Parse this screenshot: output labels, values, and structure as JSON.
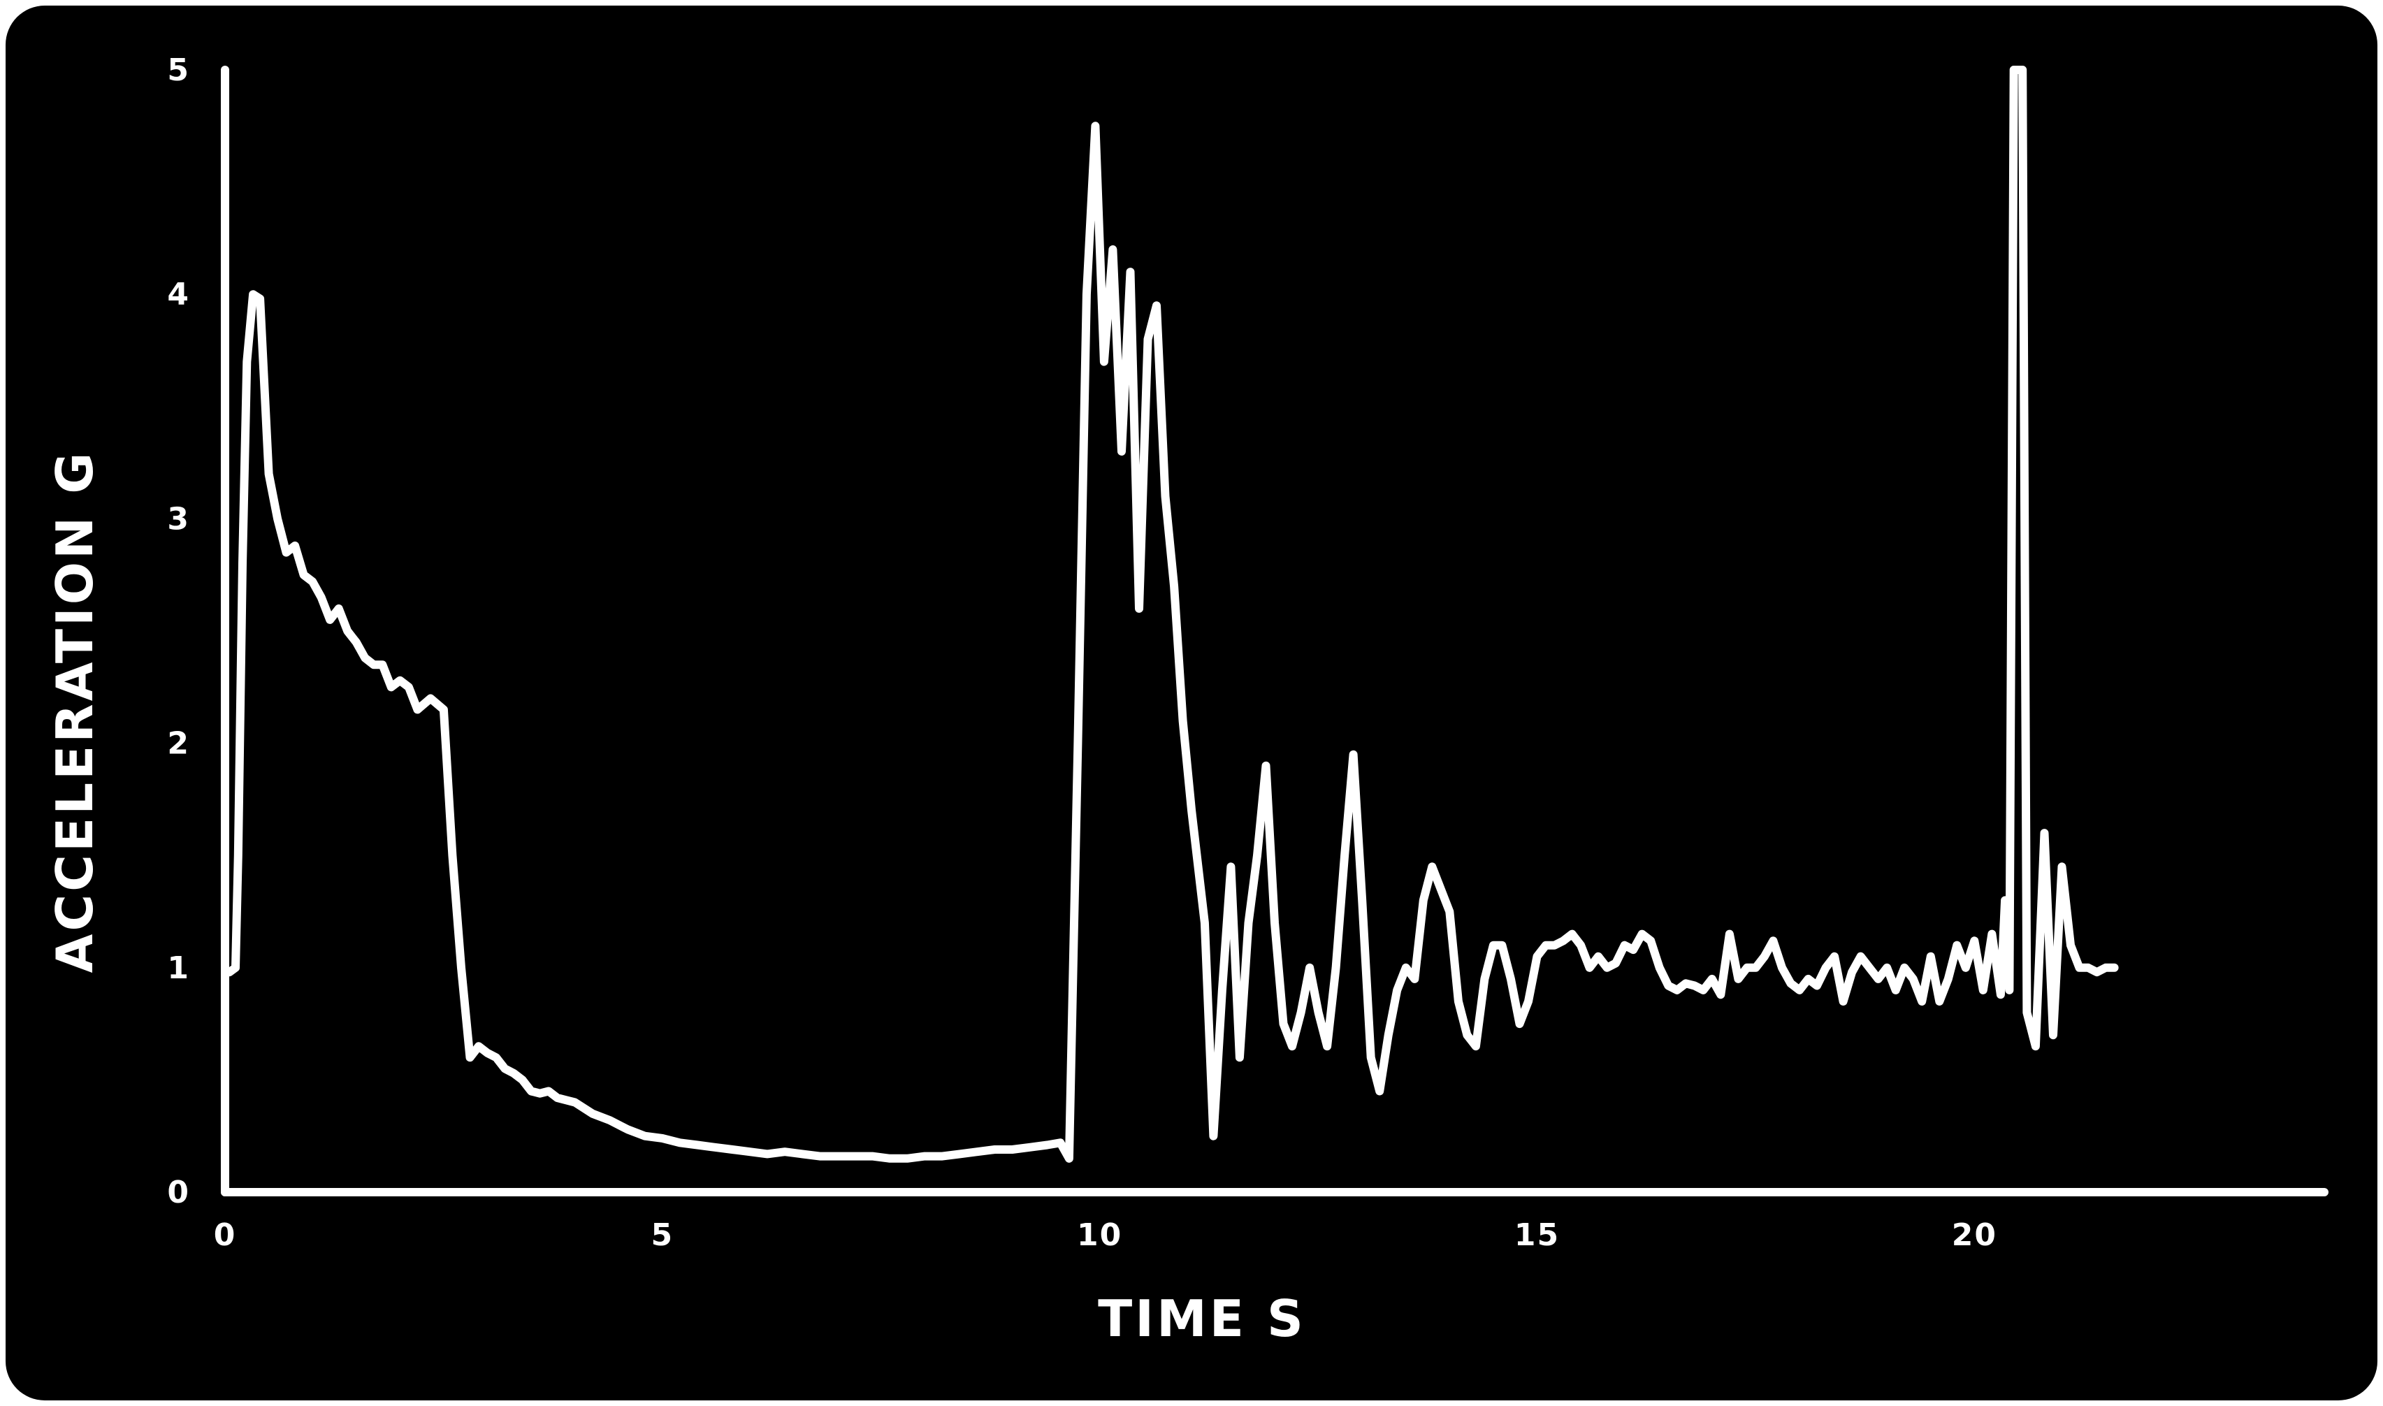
{
  "chart_data": {
    "type": "line",
    "title": "",
    "xlabel": "TIME S",
    "ylabel": "ACCELERATION G",
    "xlim": [
      0,
      24
    ],
    "ylim": [
      0,
      5
    ],
    "grid": false,
    "legend": "none",
    "x_ticks": [
      {
        "value": 0,
        "label": "0"
      },
      {
        "value": 5,
        "label": "5"
      },
      {
        "value": 10,
        "label": "10"
      },
      {
        "value": 15,
        "label": "15"
      },
      {
        "value": 20,
        "label": "20"
      }
    ],
    "y_ticks": [
      {
        "value": 0,
        "label": "0"
      },
      {
        "value": 1,
        "label": "1"
      },
      {
        "value": 2,
        "label": "2"
      },
      {
        "value": 3,
        "label": "3"
      },
      {
        "value": 4,
        "label": "4"
      },
      {
        "value": 5,
        "label": "5"
      }
    ],
    "colors": {
      "background": "#000000",
      "line": "#ffffff",
      "axis": "#ffffff",
      "text": "#ffffff"
    },
    "series": [
      {
        "name": "",
        "points": [
          [
            0.05,
            0.98
          ],
          [
            0.12,
            1.0
          ],
          [
            0.15,
            1.5
          ],
          [
            0.2,
            2.8
          ],
          [
            0.25,
            3.7
          ],
          [
            0.32,
            4.0
          ],
          [
            0.4,
            3.98
          ],
          [
            0.5,
            3.2
          ],
          [
            0.6,
            3.0
          ],
          [
            0.7,
            2.85
          ],
          [
            0.8,
            2.88
          ],
          [
            0.9,
            2.75
          ],
          [
            1.0,
            2.72
          ],
          [
            1.1,
            2.65
          ],
          [
            1.2,
            2.55
          ],
          [
            1.3,
            2.6
          ],
          [
            1.4,
            2.5
          ],
          [
            1.5,
            2.45
          ],
          [
            1.6,
            2.38
          ],
          [
            1.7,
            2.35
          ],
          [
            1.8,
            2.35
          ],
          [
            1.9,
            2.25
          ],
          [
            2.0,
            2.28
          ],
          [
            2.1,
            2.25
          ],
          [
            2.2,
            2.15
          ],
          [
            2.35,
            2.2
          ],
          [
            2.5,
            2.15
          ],
          [
            2.6,
            1.5
          ],
          [
            2.7,
            1.0
          ],
          [
            2.8,
            0.6
          ],
          [
            2.9,
            0.65
          ],
          [
            3.0,
            0.62
          ],
          [
            3.1,
            0.6
          ],
          [
            3.2,
            0.55
          ],
          [
            3.3,
            0.53
          ],
          [
            3.4,
            0.5
          ],
          [
            3.5,
            0.45
          ],
          [
            3.6,
            0.44
          ],
          [
            3.7,
            0.45
          ],
          [
            3.8,
            0.42
          ],
          [
            3.9,
            0.41
          ],
          [
            4.0,
            0.4
          ],
          [
            4.2,
            0.35
          ],
          [
            4.4,
            0.32
          ],
          [
            4.6,
            0.28
          ],
          [
            4.8,
            0.25
          ],
          [
            5.0,
            0.24
          ],
          [
            5.2,
            0.22
          ],
          [
            5.4,
            0.21
          ],
          [
            5.6,
            0.2
          ],
          [
            5.8,
            0.19
          ],
          [
            6.0,
            0.18
          ],
          [
            6.2,
            0.17
          ],
          [
            6.4,
            0.18
          ],
          [
            6.6,
            0.17
          ],
          [
            6.8,
            0.16
          ],
          [
            7.0,
            0.16
          ],
          [
            7.2,
            0.16
          ],
          [
            7.4,
            0.16
          ],
          [
            7.6,
            0.15
          ],
          [
            7.8,
            0.15
          ],
          [
            8.0,
            0.16
          ],
          [
            8.2,
            0.16
          ],
          [
            8.4,
            0.17
          ],
          [
            8.6,
            0.18
          ],
          [
            8.8,
            0.19
          ],
          [
            9.0,
            0.19
          ],
          [
            9.2,
            0.2
          ],
          [
            9.4,
            0.21
          ],
          [
            9.55,
            0.22
          ],
          [
            9.65,
            0.15
          ],
          [
            9.75,
            2.0
          ],
          [
            9.85,
            4.0
          ],
          [
            9.95,
            4.75
          ],
          [
            10.05,
            3.7
          ],
          [
            10.15,
            4.2
          ],
          [
            10.25,
            3.3
          ],
          [
            10.35,
            4.1
          ],
          [
            10.45,
            2.6
          ],
          [
            10.55,
            3.8
          ],
          [
            10.65,
            3.95
          ],
          [
            10.75,
            3.1
          ],
          [
            10.85,
            2.7
          ],
          [
            10.95,
            2.1
          ],
          [
            11.05,
            1.7
          ],
          [
            11.2,
            1.2
          ],
          [
            11.3,
            0.25
          ],
          [
            11.4,
            0.9
          ],
          [
            11.5,
            1.45
          ],
          [
            11.6,
            0.6
          ],
          [
            11.7,
            1.2
          ],
          [
            11.8,
            1.5
          ],
          [
            11.9,
            1.9
          ],
          [
            12.0,
            1.2
          ],
          [
            12.1,
            0.75
          ],
          [
            12.2,
            0.65
          ],
          [
            12.3,
            0.8
          ],
          [
            12.4,
            1.0
          ],
          [
            12.5,
            0.8
          ],
          [
            12.6,
            0.65
          ],
          [
            12.7,
            1.0
          ],
          [
            12.8,
            1.5
          ],
          [
            12.9,
            1.95
          ],
          [
            13.0,
            1.3
          ],
          [
            13.1,
            0.6
          ],
          [
            13.2,
            0.45
          ],
          [
            13.3,
            0.7
          ],
          [
            13.4,
            0.9
          ],
          [
            13.5,
            1.0
          ],
          [
            13.6,
            0.95
          ],
          [
            13.7,
            1.3
          ],
          [
            13.8,
            1.45
          ],
          [
            13.9,
            1.35
          ],
          [
            14.0,
            1.25
          ],
          [
            14.1,
            0.85
          ],
          [
            14.2,
            0.7
          ],
          [
            14.3,
            0.65
          ],
          [
            14.4,
            0.95
          ],
          [
            14.5,
            1.1
          ],
          [
            14.6,
            1.1
          ],
          [
            14.7,
            0.95
          ],
          [
            14.8,
            0.75
          ],
          [
            14.9,
            0.85
          ],
          [
            15.0,
            1.05
          ],
          [
            15.1,
            1.1
          ],
          [
            15.2,
            1.1
          ],
          [
            15.3,
            1.12
          ],
          [
            15.4,
            1.15
          ],
          [
            15.5,
            1.1
          ],
          [
            15.6,
            1.0
          ],
          [
            15.7,
            1.05
          ],
          [
            15.8,
            1.0
          ],
          [
            15.9,
            1.02
          ],
          [
            16.0,
            1.1
          ],
          [
            16.1,
            1.08
          ],
          [
            16.2,
            1.15
          ],
          [
            16.3,
            1.12
          ],
          [
            16.4,
            1.0
          ],
          [
            16.5,
            0.92
          ],
          [
            16.6,
            0.9
          ],
          [
            16.7,
            0.93
          ],
          [
            16.8,
            0.92
          ],
          [
            16.9,
            0.9
          ],
          [
            17.0,
            0.95
          ],
          [
            17.1,
            0.88
          ],
          [
            17.2,
            1.15
          ],
          [
            17.3,
            0.95
          ],
          [
            17.4,
            1.0
          ],
          [
            17.5,
            1.0
          ],
          [
            17.6,
            1.05
          ],
          [
            17.7,
            1.12
          ],
          [
            17.8,
            1.0
          ],
          [
            17.9,
            0.93
          ],
          [
            18.0,
            0.9
          ],
          [
            18.1,
            0.95
          ],
          [
            18.2,
            0.92
          ],
          [
            18.3,
            1.0
          ],
          [
            18.4,
            1.05
          ],
          [
            18.5,
            0.85
          ],
          [
            18.6,
            0.98
          ],
          [
            18.7,
            1.05
          ],
          [
            18.8,
            1.0
          ],
          [
            18.9,
            0.95
          ],
          [
            19.0,
            1.0
          ],
          [
            19.1,
            0.9
          ],
          [
            19.2,
            1.0
          ],
          [
            19.3,
            0.95
          ],
          [
            19.4,
            0.85
          ],
          [
            19.5,
            1.05
          ],
          [
            19.6,
            0.85
          ],
          [
            19.7,
            0.95
          ],
          [
            19.8,
            1.1
          ],
          [
            19.9,
            1.0
          ],
          [
            20.0,
            1.12
          ],
          [
            20.1,
            0.9
          ],
          [
            20.2,
            1.15
          ],
          [
            20.3,
            0.88
          ],
          [
            20.35,
            1.3
          ],
          [
            20.4,
            0.9
          ],
          [
            20.45,
            5.0
          ],
          [
            20.55,
            5.0
          ],
          [
            20.6,
            0.8
          ],
          [
            20.7,
            0.65
          ],
          [
            20.8,
            1.6
          ],
          [
            20.9,
            0.7
          ],
          [
            21.0,
            1.45
          ],
          [
            21.1,
            1.1
          ],
          [
            21.2,
            1.0
          ],
          [
            21.3,
            1.0
          ],
          [
            21.4,
            0.98
          ],
          [
            21.5,
            1.0
          ],
          [
            21.6,
            1.0
          ]
        ]
      }
    ]
  }
}
